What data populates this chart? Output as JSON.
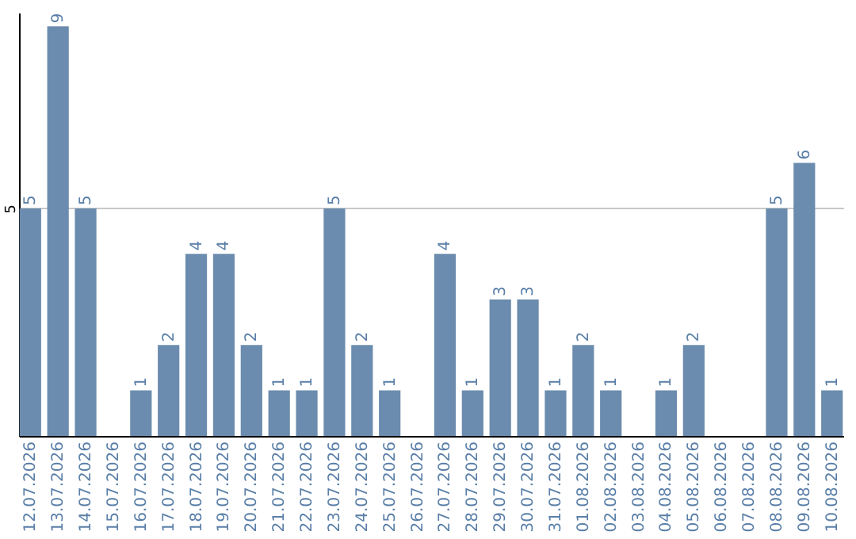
{
  "chart_data": {
    "type": "bar",
    "categories": [
      "12.07.2026",
      "13.07.2026",
      "14.07.2026",
      "15.07.2026",
      "16.07.2026",
      "17.07.2026",
      "18.07.2026",
      "19.07.2026",
      "20.07.2026",
      "21.07.2026",
      "22.07.2026",
      "23.07.2026",
      "24.07.2026",
      "25.07.2026",
      "26.07.2026",
      "27.07.2026",
      "28.07.2026",
      "29.07.2026",
      "30.07.2026",
      "31.07.2026",
      "01.08.2026",
      "02.08.2026",
      "03.08.2026",
      "04.08.2026",
      "05.08.2026",
      "06.08.2026",
      "07.08.2026",
      "08.08.2026",
      "09.08.2026",
      "10.08.2026"
    ],
    "values": [
      5,
      9,
      5,
      null,
      1,
      2,
      4,
      4,
      2,
      1,
      1,
      5,
      2,
      1,
      null,
      4,
      1,
      3,
      3,
      1,
      2,
      1,
      null,
      1,
      2,
      null,
      null,
      5,
      6,
      1
    ],
    "color": "#6b8cae",
    "ylim": [
      0,
      9.3
    ],
    "yticks": [
      5
    ],
    "grid": "y",
    "data_labels": true
  }
}
